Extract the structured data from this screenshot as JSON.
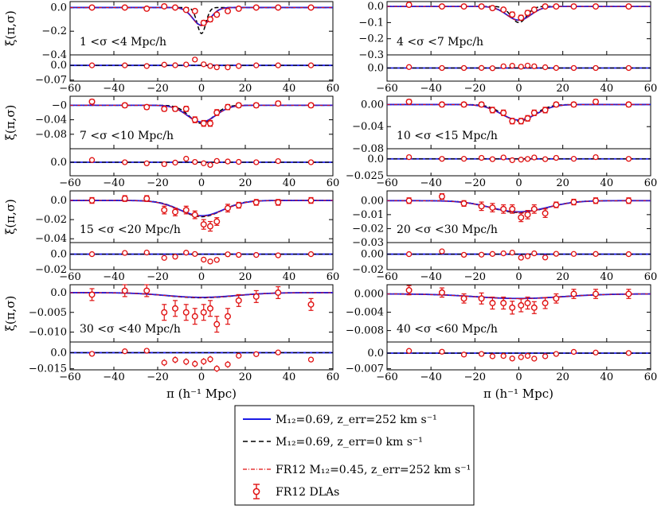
{
  "figure": {
    "ylabel": "ξ(π,σ)",
    "xlabel": "π (h⁻¹ Mpc)",
    "x_ticks": [
      "−60",
      "−40",
      "−20",
      "0",
      "20",
      "40",
      "60"
    ],
    "colors": {
      "model": "#1a1ae6",
      "model_no_err": "#000000",
      "fr12": "#e01010",
      "data": "#e01010"
    }
  },
  "legend": {
    "entries": [
      {
        "id": "model",
        "label": "M₁₂=0.69, z_err=252 km s⁻¹",
        "style": "solid-blue"
      },
      {
        "id": "model_no_err",
        "label": "M₁₂=0.69, z_err=0 km s⁻¹",
        "style": "dashed-black"
      },
      {
        "id": "fr12",
        "label": "FR12 M₁₂=0.45, z_err=252 km s⁻¹",
        "style": "dashdot-red"
      },
      {
        "id": "data",
        "label": "FR12 DLAs",
        "style": "errorbar-red"
      }
    ]
  },
  "chart_data": [
    {
      "type": "line",
      "panel": "1 < σ < 4 Mpc/h",
      "sigma_label": "1 <σ <4 Mpc/h",
      "xlim": [
        -60,
        60
      ],
      "ylim": [
        -0.4,
        0.05
      ],
      "y_ticks": [
        "0.0",
        "−0.2",
        "−0.4"
      ],
      "y_tick_values": [
        0,
        -0.2,
        -0.4
      ],
      "residual_ylim": [
        -0.075,
        0.05
      ],
      "residual_ticks": [
        "0.0",
        "−0.07"
      ],
      "residual_tick_values": [
        0,
        -0.07
      ],
      "model": {
        "depth": -0.15,
        "width": 4.0
      },
      "model_no_err": {
        "depth": -0.22,
        "width": 2.0
      },
      "points": [
        {
          "x": -50,
          "y": 0.0,
          "err": 0.01
        },
        {
          "x": -35,
          "y": 0.0,
          "err": 0.01
        },
        {
          "x": -25,
          "y": -0.01,
          "err": 0.01
        },
        {
          "x": -17,
          "y": 0.01,
          "err": 0.01
        },
        {
          "x": -12,
          "y": 0.0,
          "err": 0.01
        },
        {
          "x": -7,
          "y": -0.02,
          "err": 0.01
        },
        {
          "x": -3,
          "y": -0.03,
          "err": 0.015
        },
        {
          "x": 1,
          "y": -0.13,
          "err": 0.02
        },
        {
          "x": 4,
          "y": -0.1,
          "err": 0.02
        },
        {
          "x": 7,
          "y": -0.06,
          "err": 0.015
        },
        {
          "x": 12,
          "y": -0.03,
          "err": 0.01
        },
        {
          "x": 17,
          "y": -0.01,
          "err": 0.01
        },
        {
          "x": 25,
          "y": 0.0,
          "err": 0.01
        },
        {
          "x": 35,
          "y": 0.0,
          "err": 0.01
        },
        {
          "x": 50,
          "y": 0.0,
          "err": 0.01
        }
      ]
    },
    {
      "type": "line",
      "panel": "4 < σ < 7 Mpc/h",
      "sigma_label": "4 <σ <7 Mpc/h",
      "xlim": [
        -60,
        60
      ],
      "ylim": [
        -0.3,
        0.03
      ],
      "y_ticks": [
        "0.0",
        "−0.1",
        "−0.2",
        "−0.3"
      ],
      "y_tick_values": [
        0,
        -0.1,
        -0.2,
        -0.3
      ],
      "residual_ylim": [
        -0.04,
        0.04
      ],
      "residual_ticks": [
        "0.0"
      ],
      "residual_tick_values": [
        0
      ],
      "model": {
        "depth": -0.085,
        "width": 5.5
      },
      "model_no_err": {
        "depth": -0.1,
        "width": 3.5
      },
      "points": [
        {
          "x": -50,
          "y": 0.01,
          "err": 0.01
        },
        {
          "x": -35,
          "y": 0.0,
          "err": 0.01
        },
        {
          "x": -25,
          "y": 0.0,
          "err": 0.01
        },
        {
          "x": -17,
          "y": 0.0,
          "err": 0.01
        },
        {
          "x": -12,
          "y": -0.01,
          "err": 0.01
        },
        {
          "x": -7,
          "y": -0.02,
          "err": 0.01
        },
        {
          "x": -3,
          "y": -0.05,
          "err": 0.015
        },
        {
          "x": 1,
          "y": -0.07,
          "err": 0.015
        },
        {
          "x": 4,
          "y": -0.04,
          "err": 0.015
        },
        {
          "x": 7,
          "y": -0.02,
          "err": 0.012
        },
        {
          "x": 12,
          "y": 0.0,
          "err": 0.01
        },
        {
          "x": 17,
          "y": 0.0,
          "err": 0.01
        },
        {
          "x": 25,
          "y": 0.0,
          "err": 0.01
        },
        {
          "x": 35,
          "y": 0.0,
          "err": 0.01
        },
        {
          "x": 50,
          "y": 0.0,
          "err": 0.01
        }
      ]
    },
    {
      "type": "line",
      "panel": "7 < σ < 10 Mpc/h",
      "sigma_label": "7 <σ <10 Mpc/h",
      "xlim": [
        -60,
        60
      ],
      "ylim": [
        -0.12,
        0.025
      ],
      "y_ticks": [
        "−0",
        "−0.04",
        "−0.08"
      ],
      "y_tick_values": [
        0,
        -0.04,
        -0.08
      ],
      "residual_ylim": [
        -0.03,
        0.03
      ],
      "residual_ticks": [
        "0.0"
      ],
      "residual_tick_values": [
        0
      ],
      "model": {
        "depth": -0.046,
        "width": 6.5
      },
      "model_no_err": {
        "depth": -0.05,
        "width": 5.5
      },
      "points": [
        {
          "x": -50,
          "y": 0.01,
          "err": 0.006
        },
        {
          "x": -35,
          "y": 0.0,
          "err": 0.006
        },
        {
          "x": -25,
          "y": -0.005,
          "err": 0.006
        },
        {
          "x": -17,
          "y": -0.01,
          "err": 0.006
        },
        {
          "x": -12,
          "y": -0.01,
          "err": 0.006
        },
        {
          "x": -7,
          "y": -0.01,
          "err": 0.007
        },
        {
          "x": -3,
          "y": -0.04,
          "err": 0.008
        },
        {
          "x": 1,
          "y": -0.05,
          "err": 0.008
        },
        {
          "x": 4,
          "y": -0.05,
          "err": 0.008
        },
        {
          "x": 7,
          "y": -0.02,
          "err": 0.008
        },
        {
          "x": 12,
          "y": -0.005,
          "err": 0.007
        },
        {
          "x": 17,
          "y": 0.0,
          "err": 0.006
        },
        {
          "x": 25,
          "y": 0.0,
          "err": 0.006
        },
        {
          "x": 35,
          "y": 0.005,
          "err": 0.006
        },
        {
          "x": 50,
          "y": 0.0,
          "err": 0.006
        }
      ]
    },
    {
      "type": "line",
      "panel": "10 < σ < 15 Mpc/h",
      "sigma_label": "10 <σ <15 Mpc/h",
      "xlim": [
        -60,
        60
      ],
      "ylim": [
        -0.08,
        0.015
      ],
      "y_ticks": [
        "0.00",
        "−0.04",
        "−0.08"
      ],
      "y_tick_values": [
        0,
        -0.04,
        -0.08
      ],
      "residual_ylim": [
        -0.025,
        0.015
      ],
      "residual_ticks": [
        "0.0",
        "−0.025"
      ],
      "residual_tick_values": [
        0,
        -0.025
      ],
      "model": {
        "depth": -0.028,
        "width": 8.0
      },
      "model_no_err": {
        "depth": -0.03,
        "width": 7.0
      },
      "points": [
        {
          "x": -50,
          "y": 0.005,
          "err": 0.004
        },
        {
          "x": -35,
          "y": 0.0,
          "err": 0.004
        },
        {
          "x": -25,
          "y": 0.0,
          "err": 0.004
        },
        {
          "x": -17,
          "y": 0.0,
          "err": 0.004
        },
        {
          "x": -12,
          "y": -0.01,
          "err": 0.005
        },
        {
          "x": -7,
          "y": -0.015,
          "err": 0.005
        },
        {
          "x": -3,
          "y": -0.03,
          "err": 0.005
        },
        {
          "x": 1,
          "y": -0.03,
          "err": 0.005
        },
        {
          "x": 4,
          "y": -0.025,
          "err": 0.005
        },
        {
          "x": 7,
          "y": -0.015,
          "err": 0.005
        },
        {
          "x": 12,
          "y": -0.01,
          "err": 0.005
        },
        {
          "x": 17,
          "y": 0.0,
          "err": 0.004
        },
        {
          "x": 25,
          "y": 0.0,
          "err": 0.004
        },
        {
          "x": 35,
          "y": 0.005,
          "err": 0.004
        },
        {
          "x": 50,
          "y": 0.0,
          "err": 0.004
        }
      ]
    },
    {
      "type": "line",
      "panel": "15 < σ < 20 Mpc/h",
      "sigma_label": "15 <σ <20 Mpc/h",
      "xlim": [
        -60,
        60
      ],
      "ylim": [
        -0.044,
        0.01
      ],
      "y_ticks": [
        "0.0",
        "−0.02",
        "−0.04"
      ],
      "y_tick_values": [
        0,
        -0.02,
        -0.04
      ],
      "residual_ylim": [
        -0.02,
        0.015
      ],
      "residual_ticks": [
        "0.0",
        "−0.02"
      ],
      "residual_tick_values": [
        0,
        -0.02
      ],
      "model": {
        "depth": -0.016,
        "width": 10.0
      },
      "model_no_err": {
        "depth": -0.017,
        "width": 9.5
      },
      "points": [
        {
          "x": -50,
          "y": 0.0,
          "err": 0.003
        },
        {
          "x": -35,
          "y": 0.002,
          "err": 0.003
        },
        {
          "x": -25,
          "y": 0.002,
          "err": 0.003
        },
        {
          "x": -17,
          "y": -0.01,
          "err": 0.004
        },
        {
          "x": -12,
          "y": -0.012,
          "err": 0.004
        },
        {
          "x": -7,
          "y": -0.01,
          "err": 0.004
        },
        {
          "x": -3,
          "y": -0.015,
          "err": 0.004
        },
        {
          "x": 1,
          "y": -0.025,
          "err": 0.005
        },
        {
          "x": 4,
          "y": -0.027,
          "err": 0.005
        },
        {
          "x": 7,
          "y": -0.022,
          "err": 0.004
        },
        {
          "x": 12,
          "y": -0.008,
          "err": 0.004
        },
        {
          "x": 17,
          "y": -0.005,
          "err": 0.003
        },
        {
          "x": 25,
          "y": -0.002,
          "err": 0.003
        },
        {
          "x": 35,
          "y": -0.002,
          "err": 0.003
        },
        {
          "x": 50,
          "y": 0.0,
          "err": 0.003
        }
      ]
    },
    {
      "type": "line",
      "panel": "20 < σ < 30 Mpc/h",
      "sigma_label": "20 <σ <30 Mpc/h",
      "xlim": [
        -60,
        60
      ],
      "ylim": [
        -0.03,
        0.007
      ],
      "y_ticks": [
        "0.00",
        "−0.01",
        "−0.02",
        "−0.03"
      ],
      "y_tick_values": [
        0,
        -0.01,
        -0.02,
        -0.03
      ],
      "residual_ylim": [
        -0.02,
        0.015
      ],
      "residual_ticks": [
        "0.00",
        "−0.02"
      ],
      "residual_tick_values": [
        0,
        -0.02
      ],
      "model": {
        "depth": -0.008,
        "width": 13.0
      },
      "model_no_err": {
        "depth": -0.0085,
        "width": 12.5
      },
      "points": [
        {
          "x": -50,
          "y": 0.0,
          "err": 0.002
        },
        {
          "x": -35,
          "y": 0.003,
          "err": 0.002
        },
        {
          "x": -25,
          "y": -0.002,
          "err": 0.002
        },
        {
          "x": -17,
          "y": -0.004,
          "err": 0.003
        },
        {
          "x": -12,
          "y": -0.005,
          "err": 0.003
        },
        {
          "x": -7,
          "y": -0.006,
          "err": 0.003
        },
        {
          "x": -3,
          "y": -0.006,
          "err": 0.003
        },
        {
          "x": 1,
          "y": -0.012,
          "err": 0.003
        },
        {
          "x": 4,
          "y": -0.01,
          "err": 0.003
        },
        {
          "x": 7,
          "y": -0.006,
          "err": 0.003
        },
        {
          "x": 12,
          "y": -0.009,
          "err": 0.003
        },
        {
          "x": 17,
          "y": -0.003,
          "err": 0.002
        },
        {
          "x": 25,
          "y": -0.001,
          "err": 0.002
        },
        {
          "x": 35,
          "y": 0.0,
          "err": 0.002
        },
        {
          "x": 50,
          "y": 0.0,
          "err": 0.002
        }
      ]
    },
    {
      "type": "line",
      "panel": "30 < σ < 40 Mpc/h",
      "sigma_label": "30 <σ <40 Mpc/h",
      "xlim": [
        -60,
        60
      ],
      "ylim": [
        -0.0125,
        0.002
      ],
      "y_ticks": [
        "0.0",
        "−0.005",
        "−0.010"
      ],
      "y_tick_values": [
        0,
        -0.005,
        -0.01
      ],
      "residual_ylim": [
        -0.016,
        0.01
      ],
      "residual_ticks": [
        "0.0",
        "−0.015"
      ],
      "residual_tick_values": [
        0,
        -0.015
      ],
      "model": {
        "depth": -0.0012,
        "width": 16.0
      },
      "model_no_err": {
        "depth": -0.0013,
        "width": 15.5
      },
      "points": [
        {
          "x": -50,
          "y": -0.0005,
          "err": 0.0015
        },
        {
          "x": -35,
          "y": 0.0005,
          "err": 0.0015
        },
        {
          "x": -25,
          "y": 0.0005,
          "err": 0.0015
        },
        {
          "x": -17,
          "y": -0.005,
          "err": 0.002
        },
        {
          "x": -12,
          "y": -0.004,
          "err": 0.002
        },
        {
          "x": -7,
          "y": -0.005,
          "err": 0.002
        },
        {
          "x": -3,
          "y": -0.006,
          "err": 0.002
        },
        {
          "x": 1,
          "y": -0.005,
          "err": 0.002
        },
        {
          "x": 4,
          "y": -0.004,
          "err": 0.002
        },
        {
          "x": 7,
          "y": -0.008,
          "err": 0.002
        },
        {
          "x": 12,
          "y": -0.006,
          "err": 0.002
        },
        {
          "x": 17,
          "y": -0.002,
          "err": 0.0015
        },
        {
          "x": 25,
          "y": -0.001,
          "err": 0.0015
        },
        {
          "x": 35,
          "y": 0.0,
          "err": 0.0015
        },
        {
          "x": 50,
          "y": -0.003,
          "err": 0.0015
        }
      ]
    },
    {
      "type": "line",
      "panel": "40 < σ < 60 Mpc/h",
      "sigma_label": "40 <σ <60 Mpc/h",
      "xlim": [
        -60,
        60
      ],
      "ylim": [
        -0.0105,
        0.002
      ],
      "y_ticks": [
        "0.000",
        "−0.004",
        "−0.008"
      ],
      "y_tick_values": [
        0,
        -0.004,
        -0.008
      ],
      "residual_ylim": [
        -0.0075,
        0.005
      ],
      "residual_ticks": [
        "0.0",
        "−0.007"
      ],
      "residual_tick_values": [
        0,
        -0.007
      ],
      "model": {
        "depth": -0.001,
        "width": 20.0
      },
      "model_no_err": {
        "depth": -0.001,
        "width": 19.5
      },
      "points": [
        {
          "x": -50,
          "y": 0.0008,
          "err": 0.001
        },
        {
          "x": -35,
          "y": 0.0003,
          "err": 0.001
        },
        {
          "x": -25,
          "y": -0.001,
          "err": 0.001
        },
        {
          "x": -17,
          "y": -0.001,
          "err": 0.0012
        },
        {
          "x": -12,
          "y": -0.002,
          "err": 0.0013
        },
        {
          "x": -7,
          "y": -0.002,
          "err": 0.0013
        },
        {
          "x": -3,
          "y": -0.003,
          "err": 0.0014
        },
        {
          "x": 1,
          "y": -0.0025,
          "err": 0.0014
        },
        {
          "x": 4,
          "y": -0.002,
          "err": 0.0013
        },
        {
          "x": 7,
          "y": -0.003,
          "err": 0.0013
        },
        {
          "x": 12,
          "y": -0.002,
          "err": 0.0012
        },
        {
          "x": 17,
          "y": -0.001,
          "err": 0.001
        },
        {
          "x": 25,
          "y": 0.0,
          "err": 0.001
        },
        {
          "x": 35,
          "y": 0.0,
          "err": 0.001
        },
        {
          "x": 50,
          "y": 0.0,
          "err": 0.001
        }
      ]
    }
  ]
}
